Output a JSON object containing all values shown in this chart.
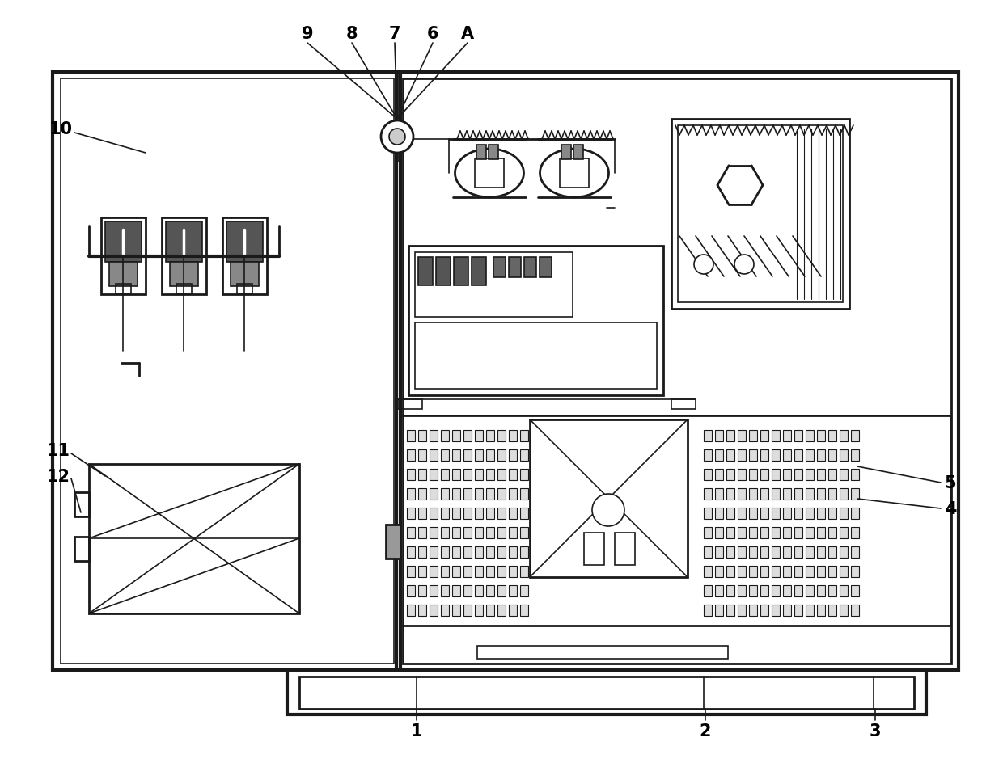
{
  "bg_color": "#ffffff",
  "line_color": "#1a1a1a",
  "fig_width": 12.4,
  "fig_height": 9.45,
  "lw_thick": 3.0,
  "lw_med": 2.0,
  "lw_thin": 1.2,
  "lw_hair": 0.8
}
